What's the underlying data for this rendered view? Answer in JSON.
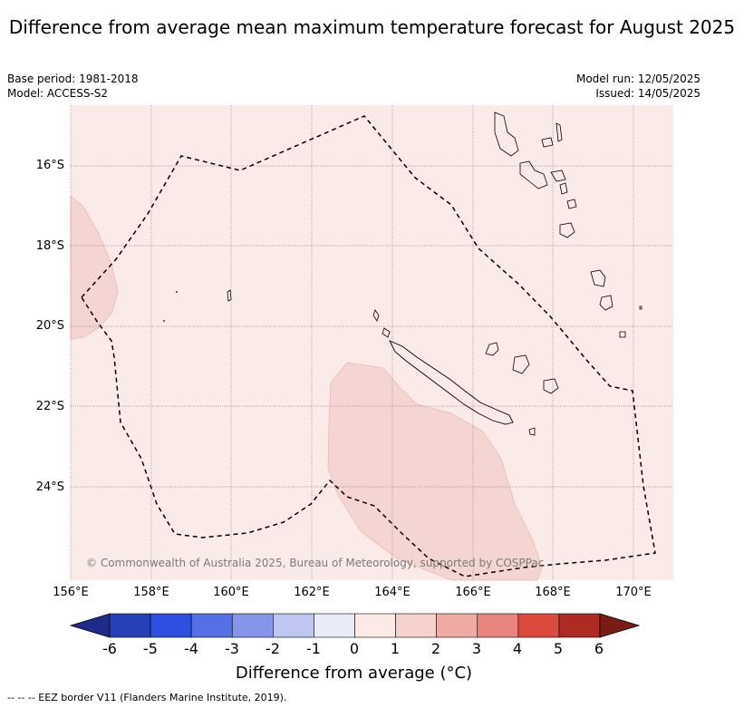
{
  "title": "Difference from average mean maximum temperature forecast for August 2025",
  "meta_left": {
    "base_period": "Base period: 1981-2018",
    "model": "Model: ACCESS-S2"
  },
  "meta_right": {
    "model_run": "Model run: 12/05/2025",
    "issued": "Issued: 14/05/2025"
  },
  "map": {
    "lat_labels": [
      "16°S",
      "18°S",
      "20°S",
      "22°S",
      "24°S"
    ],
    "lon_labels": [
      "156°E",
      "158°E",
      "160°E",
      "162°E",
      "164°E",
      "166°E",
      "168°E",
      "170°E"
    ],
    "copyright": "© Commonwealth of Australia 2025, Bureau of Meteorology, supported by COSPPac",
    "colors": {
      "background": "#fbebe8",
      "anomaly_patch": "#f5d5d2",
      "grid": "#8a7a7a",
      "coast": "#000000"
    }
  },
  "colorbar": {
    "title": "Difference from average (°C)",
    "ticks": [
      "-6",
      "-5",
      "-4",
      "-3",
      "-2",
      "-1",
      "0",
      "1",
      "2",
      "3",
      "4",
      "5",
      "6"
    ],
    "colors": [
      "#1e2b8a",
      "#2541b8",
      "#2e4fe0",
      "#5470e6",
      "#8495ea",
      "#bfc6f2",
      "#e8ebf8",
      "#fdeae6",
      "#f6d2cd",
      "#efaaa4",
      "#e8857e",
      "#dc4a3d",
      "#ad2b22",
      "#7a1c14"
    ]
  },
  "footnote": "-- -- -- EEZ border V11 (Flanders Marine Institute, 2019)."
}
